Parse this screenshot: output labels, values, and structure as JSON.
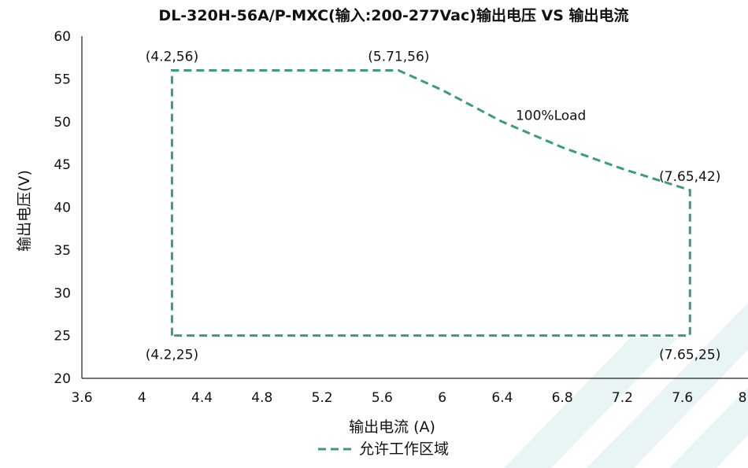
{
  "chart_data": {
    "type": "line",
    "title": "DL-320H-56A/P-MXC(输入:200-277Vac)输出电压 VS 输出电流",
    "xlabel": "输出电流 (A)",
    "ylabel": "输出电压(V)",
    "xlim": [
      3.6,
      8
    ],
    "ylim": [
      20,
      60
    ],
    "x_ticks": [
      "3.6",
      "4",
      "4.4",
      "4.8",
      "5.2",
      "5.6",
      "6",
      "6.4",
      "6.8",
      "7.2",
      "7.6",
      "8"
    ],
    "y_ticks": [
      "20",
      "25",
      "30",
      "35",
      "40",
      "45",
      "50",
      "55",
      "60"
    ],
    "grid": false,
    "legend_position": "bottom",
    "series": [
      {
        "name": "允许工作区域",
        "color": "#3d9b7a",
        "line_style": "dashed",
        "x": [
          4.2,
          4.2,
          5.71,
          6.0,
          6.4,
          6.8,
          7.2,
          7.65,
          7.65,
          4.2
        ],
        "y": [
          25,
          56,
          56,
          53.7,
          50,
          47,
          44.5,
          42,
          25,
          25
        ]
      }
    ],
    "annotations": [
      {
        "text": "(4.2,56)",
        "x": 4.2,
        "y": 56,
        "anchor": "above"
      },
      {
        "text": "(5.71,56)",
        "x": 5.71,
        "y": 56,
        "anchor": "above"
      },
      {
        "text": "100%Load",
        "x": 6.5,
        "y": 50.2,
        "anchor": "right"
      },
      {
        "text": "(7.65,42)",
        "x": 7.65,
        "y": 42,
        "anchor": "above"
      },
      {
        "text": "(4.2,25)",
        "x": 4.2,
        "y": 25,
        "anchor": "below"
      },
      {
        "text": "(7.65,25)",
        "x": 7.65,
        "y": 25,
        "anchor": "below"
      }
    ],
    "watermark_color": "#e8f5f4"
  }
}
